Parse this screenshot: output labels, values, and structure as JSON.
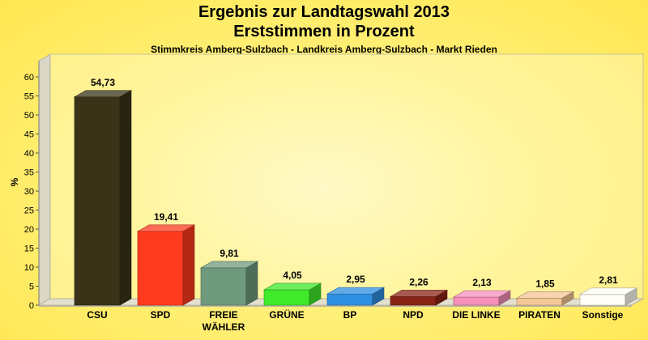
{
  "title": "Ergebnis zur Landtagswahl 2013",
  "subtitle": "Erststimmen in Prozent",
  "subtitle2": "Stimmkreis Amberg-Sulzbach - Landkreis Amberg-Sulzbach - Markt Rieden",
  "chart_data": {
    "type": "bar",
    "ylabel": "%",
    "xlabel": "",
    "ylim": [
      0,
      60
    ],
    "yticks": [
      "0",
      "5",
      "10",
      "15",
      "20",
      "25",
      "30",
      "35",
      "40",
      "45",
      "50",
      "55",
      "60"
    ],
    "grid": false,
    "categories": [
      "CSU",
      "SPD",
      "FREIE WÄHLER",
      "GRÜNE",
      "BP",
      "NPD",
      "DIE LINKE",
      "PIRATEN",
      "Sonstige"
    ],
    "category_lines": [
      [
        "CSU"
      ],
      [
        "SPD"
      ],
      [
        "FREIE",
        "WÄHLER"
      ],
      [
        "GRÜNE"
      ],
      [
        "BP"
      ],
      [
        "NPD"
      ],
      [
        "DIE LINKE"
      ],
      [
        "PIRATEN"
      ],
      [
        "Sonstige"
      ]
    ],
    "values": [
      54.73,
      19.41,
      9.81,
      4.05,
      2.95,
      2.26,
      2.13,
      1.85,
      2.81
    ],
    "value_labels": [
      "54,73",
      "19,41",
      "9,81",
      "4,05",
      "2,95",
      "2,26",
      "2,13",
      "1,85",
      "2,81"
    ],
    "colors": [
      "#3A3318",
      "#FF3A1E",
      "#6F9A7E",
      "#3FEA2A",
      "#2F8FE0",
      "#8A2416",
      "#F58FB8",
      "#F5C796",
      "#FFFFF6"
    ]
  }
}
